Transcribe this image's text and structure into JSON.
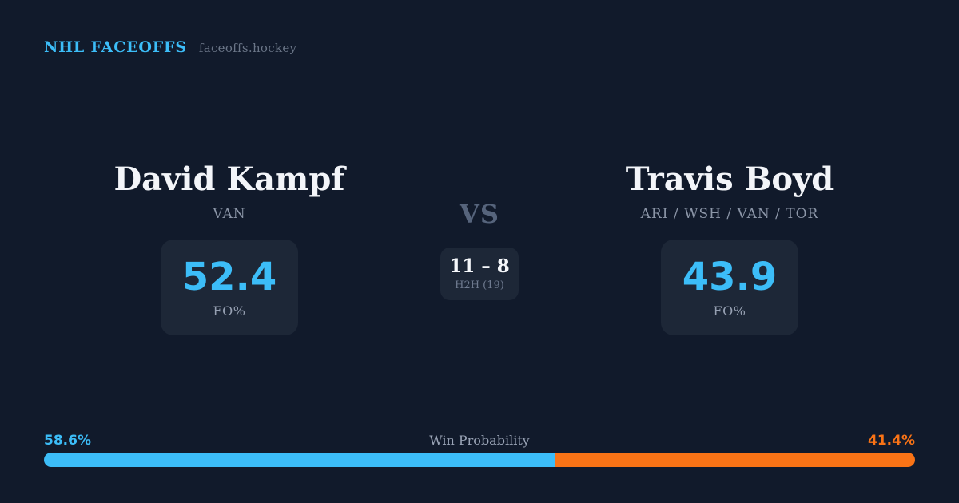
{
  "header": {
    "brand": "NHL FACEOFFS",
    "domain": "faceoffs.hockey"
  },
  "players": {
    "left": {
      "name": "David Kampf",
      "teams": "VAN",
      "stat_value": "52.4",
      "stat_label": "FO%"
    },
    "right": {
      "name": "Travis Boyd",
      "teams": "ARI / WSH / VAN / TOR",
      "stat_value": "43.9",
      "stat_label": "FO%"
    }
  },
  "center": {
    "vs_label": "VS",
    "h2h_score": "11 – 8",
    "h2h_label": "H2H (19)"
  },
  "win_probability": {
    "title": "Win Probability",
    "left_label": "58.6%",
    "right_label": "41.4%",
    "left_value": 58.6,
    "right_value": 41.4,
    "left_color": "#3CBDF8",
    "right_color": "#F97316"
  },
  "colors": {
    "background": "#111A2B",
    "card_background": "#1D2737",
    "accent_blue": "#3CBDF8",
    "accent_orange": "#F97316",
    "text_primary": "#F3F5F9",
    "text_muted": "#8C96A8",
    "vs_color": "#56647C"
  },
  "chart_data": {
    "type": "bar",
    "title": "Win Probability",
    "categories": [
      "David Kampf (VAN)",
      "Travis Boyd (ARI / WSH / VAN / TOR)"
    ],
    "series": [
      {
        "name": "Win Probability (%)",
        "values": [
          58.6,
          41.4
        ]
      },
      {
        "name": "FO%",
        "values": [
          52.4,
          43.9
        ]
      },
      {
        "name": "H2H faceoff wins (of 19)",
        "values": [
          11,
          8
        ]
      }
    ],
    "colors": [
      "#3CBDF8",
      "#F97316"
    ],
    "xlabel": "",
    "ylabel": "",
    "legend": false,
    "notes": "Stacked horizontal probability bar spanning full width; blue = left player share, orange = right player share."
  }
}
